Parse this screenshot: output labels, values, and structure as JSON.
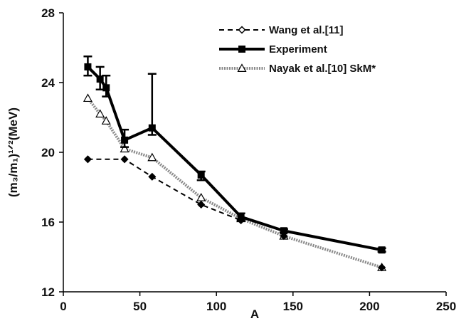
{
  "chart_data": {
    "type": "line",
    "title": "",
    "xlabel": "A",
    "ylabel": "(m₃/m₁)¹ᐟ²(MeV)",
    "xlim": [
      0,
      250
    ],
    "ylim": [
      12,
      28
    ],
    "xticks": [
      0,
      50,
      100,
      150,
      200,
      250
    ],
    "yticks": [
      12,
      16,
      20,
      24,
      28
    ],
    "grid": false,
    "legend_position": "top-right",
    "series": [
      {
        "name": "Wang et al.[11]",
        "style": "dashed",
        "marker": "diamond",
        "color": "#000000",
        "x": [
          16,
          40,
          58,
          90,
          116
        ],
        "y": [
          19.6,
          19.6,
          18.6,
          17.0,
          16.1
        ]
      },
      {
        "name": "Experiment",
        "style": "solid-thick",
        "marker": "square",
        "color": "#000000",
        "x": [
          16,
          24,
          28,
          40,
          58,
          90,
          116,
          144,
          208
        ],
        "y": [
          24.9,
          24.2,
          23.7,
          20.7,
          21.4,
          18.7,
          16.3,
          15.5,
          14.4
        ],
        "error_upper": [
          25.5,
          24.9,
          24.4,
          21.3,
          24.5,
          18.9,
          16.5,
          15.6,
          14.5
        ],
        "error_lower": [
          24.4,
          23.6,
          23.2,
          20.3,
          21.0,
          18.4,
          16.1,
          15.4,
          14.3
        ]
      },
      {
        "name": "Nayak et al.[10] SkM*",
        "style": "dotted-thick",
        "marker": "triangle",
        "color": "#888888",
        "x": [
          16,
          24,
          28,
          40,
          58,
          90,
          116,
          144,
          208
        ],
        "y": [
          23.1,
          22.2,
          21.8,
          20.2,
          19.7,
          17.4,
          16.2,
          15.2,
          13.4
        ]
      }
    ],
    "extra_points": [
      {
        "series": "Wang et al.[11]",
        "x": [
          144,
          208
        ],
        "y": [
          15.2,
          13.4
        ]
      }
    ]
  }
}
